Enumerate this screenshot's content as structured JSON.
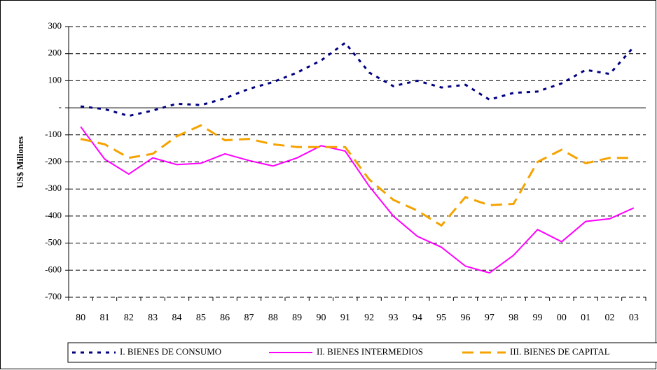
{
  "chart_data": {
    "type": "line",
    "y_label": "US$ Millones",
    "categories": [
      "80",
      "81",
      "82",
      "83",
      "84",
      "85",
      "86",
      "87",
      "88",
      "89",
      "90",
      "91",
      "92",
      "93",
      "94",
      "95",
      "96",
      "97",
      "98",
      "99",
      "00",
      "01",
      "02",
      "03"
    ],
    "series": [
      {
        "name": "I. BIENES DE CONSUMO",
        "color": "#000080",
        "dash": "5,7",
        "values": [
          5,
          -5,
          -30,
          -10,
          15,
          10,
          35,
          70,
          95,
          130,
          175,
          240,
          130,
          80,
          100,
          75,
          85,
          30,
          55,
          60,
          90,
          140,
          125,
          225
        ]
      },
      {
        "name": "II. BIENES INTERMEDIOS",
        "color": "#ff00ff",
        "dash": "none",
        "values": [
          -70,
          -190,
          -245,
          -185,
          -210,
          -205,
          -170,
          -195,
          -215,
          -185,
          -140,
          -160,
          -290,
          -400,
          -475,
          -515,
          -585,
          -610,
          -545,
          -450,
          -495,
          -420,
          -410,
          -370
        ]
      },
      {
        "name": "III. BIENES DE CAPITAL",
        "color": "#f5a300",
        "dash": "16,9",
        "values": [
          -115,
          -135,
          -185,
          -170,
          -105,
          -65,
          -120,
          -115,
          -135,
          -145,
          -145,
          -145,
          -265,
          -340,
          -380,
          -435,
          -330,
          -360,
          -355,
          -200,
          -155,
          -205,
          -185,
          -185
        ]
      }
    ],
    "ylim": [
      -700,
      300
    ],
    "yticks": [
      300,
      200,
      100,
      {
        "value": 0,
        "label": "-"
      },
      -100,
      -200,
      -300,
      -400,
      -500,
      -600,
      -700
    ],
    "grid": true
  }
}
